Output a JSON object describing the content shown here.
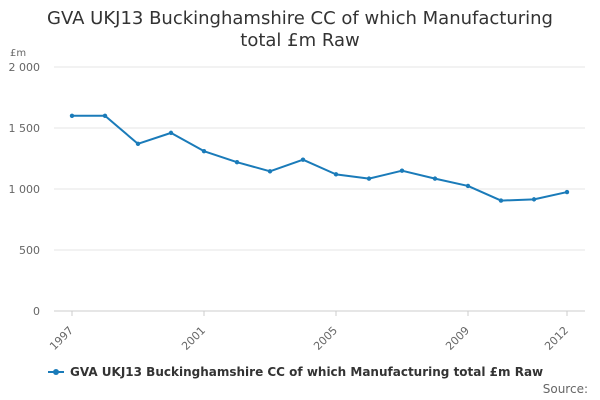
{
  "chart_data": {
    "type": "line",
    "title_lines": [
      "GVA UKJ13 Buckinghamshire CC of which Manufacturing",
      "total £m Raw"
    ],
    "ylabel": "£m",
    "ylim": [
      0,
      2000
    ],
    "yticks": [
      0,
      500,
      1000,
      1500,
      2000
    ],
    "ytick_labels": [
      "0",
      "500",
      "1 000",
      "1 500",
      "2 000"
    ],
    "xlim": [
      1997,
      2012
    ],
    "xticks": [
      1997,
      2001,
      2005,
      2009,
      2012
    ],
    "xtick_labels": [
      "1997",
      "2001",
      "2005",
      "2009",
      "2012"
    ],
    "x": [
      1997,
      1998,
      1999,
      2000,
      2001,
      2002,
      2003,
      2004,
      2005,
      2006,
      2007,
      2008,
      2009,
      2010,
      2011,
      2012
    ],
    "series": [
      {
        "name": "GVA UKJ13 Buckinghamshire CC of which Manufacturing total £m Raw",
        "color": "#1a7bb9",
        "values": [
          1600,
          1600,
          1370,
          1460,
          1310,
          1220,
          1145,
          1240,
          1120,
          1085,
          1150,
          1085,
          1025,
          905,
          915,
          975
        ]
      }
    ],
    "grid": "horizontal",
    "legend_position": "bottom"
  },
  "footer": {
    "source_label": "Source:"
  }
}
